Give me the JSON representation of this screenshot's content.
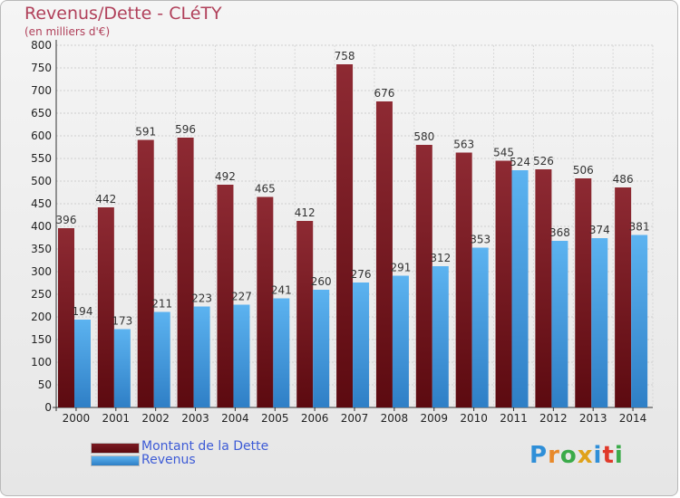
{
  "header": {
    "title": "Revenus/Dette - CLéTY",
    "subtitle": "(en milliers d'€)"
  },
  "legend": {
    "debt_label": "Montant de la Dette",
    "revenue_label": "Revenus"
  },
  "logo": {
    "text": "Proxiti"
  },
  "colors": {
    "debt": "#8b1c24",
    "revenue": "#3f9ae0",
    "title": "#b0405a",
    "legend_text": "#3d5bd6"
  },
  "chart_data": {
    "type": "bar",
    "title": "Revenus/Dette - CLéTY",
    "subtitle": "(en milliers d'€)",
    "categories": [
      "2000",
      "2001",
      "2002",
      "2003",
      "2004",
      "2005",
      "2006",
      "2007",
      "2008",
      "2009",
      "2010",
      "2011",
      "2012",
      "2013",
      "2014"
    ],
    "series": [
      {
        "name": "Montant de la Dette",
        "values": [
          396,
          442,
          591,
          596,
          492,
          465,
          412,
          758,
          676,
          580,
          563,
          545,
          526,
          506,
          486
        ]
      },
      {
        "name": "Revenus",
        "values": [
          194,
          173,
          211,
          223,
          227,
          241,
          260,
          276,
          291,
          312,
          353,
          524,
          368,
          374,
          381
        ]
      }
    ],
    "ylim": [
      0,
      800
    ],
    "yticks": [
      0,
      50,
      100,
      150,
      200,
      250,
      300,
      350,
      400,
      450,
      500,
      550,
      600,
      650,
      700,
      750,
      800
    ],
    "grid": true,
    "legend_position": "bottom-left"
  }
}
